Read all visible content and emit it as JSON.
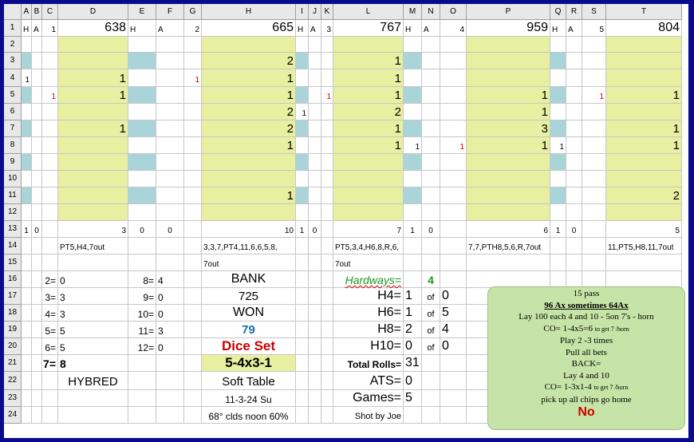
{
  "columns": [
    "A",
    "B",
    "C",
    "D",
    "E",
    "F",
    "G",
    "H",
    "I",
    "J",
    "K",
    "L",
    "M",
    "N",
    "O",
    "P",
    "Q",
    "R",
    "S",
    "T"
  ],
  "rows": [
    "1",
    "2",
    "3",
    "4",
    "5",
    "6",
    "7",
    "8",
    "9",
    "10",
    "11",
    "12",
    "13",
    "14",
    "15",
    "16",
    "17",
    "18",
    "19",
    "20",
    "21",
    "22",
    "23",
    "24"
  ],
  "row1": {
    "A": "H",
    "B": "A",
    "C": "1",
    "D": "638",
    "E": "H",
    "F": "A",
    "G": "2",
    "H": "665",
    "I": "H",
    "J": "A",
    "K": "3",
    "L": "767",
    "M": "H",
    "N": "A",
    "O": "4",
    "P": "959",
    "Q": "H",
    "R": "A",
    "S": "5",
    "T": "804"
  },
  "grid": {
    "r3": {
      "H": "2",
      "L": "1"
    },
    "r4": {
      "A": "1",
      "D": "1",
      "G": "1",
      "H": "1",
      "L": "1"
    },
    "r5": {
      "C": "1",
      "D": "1",
      "H": "1",
      "K": "1",
      "L": "1",
      "P": "1",
      "S": "1",
      "T": "1"
    },
    "r6": {
      "H": "2",
      "I": "1",
      "L": "2",
      "P": "1"
    },
    "r7": {
      "D": "1",
      "H": "2",
      "L": "1",
      "P": "3",
      "T": "1"
    },
    "r8": {
      "H": "1",
      "L": "1",
      "M": "1",
      "O": "1",
      "P": "1",
      "Q": "1",
      "T": "1"
    },
    "r11": {
      "H": "1",
      "T": "2"
    },
    "r13": {
      "A": "1",
      "B": "0",
      "D": "3",
      "E": "0",
      "F": "0",
      "H": "10",
      "I": "1",
      "J": "0",
      "L": "7",
      "M": "1",
      "N": "0",
      "P": "6",
      "Q": "1",
      "R": "0",
      "T": "5"
    }
  },
  "row14": {
    "D": "PT5,H4,7out",
    "H": "3,3,7,PT4,11,6,6,5,8,",
    "L": "PT5,3,4,H6,8,R,6,",
    "P": "7,7,PTH8,5,6,R,7out",
    "T": "11,PT5,H8,11,7out"
  },
  "row15": {
    "H": "7out",
    "L": "7out"
  },
  "summary": {
    "c16": "2=",
    "d16": "0",
    "e16": "8=",
    "e16v": "4",
    "h16": "BANK",
    "c17": "3=",
    "d17": "3",
    "e17": "9=",
    "e17v": "0",
    "h17": "725",
    "c18": "4=",
    "d18": "3",
    "e18": "10=",
    "e18v": "0",
    "h18": "WON",
    "c19": "5=",
    "d19": "5",
    "e19": "11=",
    "e19v": "3",
    "h19": "79",
    "c20": "6=",
    "d20": "5",
    "e20": "12=",
    "e20v": "0",
    "h20": "Dice Set",
    "c21": "7=",
    "d21": "8",
    "h21": "5-4x3-1",
    "d22": "HYBRED",
    "h22": "Soft Table",
    "h23": "11-3-24 Su",
    "h24": "68° clds noon 60%"
  },
  "hardways": {
    "label": "Hardways=",
    "value": "4",
    "h4": "H4=",
    "h4a": "1",
    "h4of": "of",
    "h4b": "0",
    "h6": "H6=",
    "h6a": "1",
    "h6of": "of",
    "h6b": "5",
    "h8": "H8=",
    "h8a": "2",
    "h8of": "of",
    "h8b": "4",
    "h10": "H10=",
    "h10a": "0",
    "h10of": "of",
    "h10b": "0",
    "total_label": "Total Rolls=",
    "total": "31",
    "ats_label": "ATS=",
    "ats": "0",
    "games_label": "Games=",
    "games": "5",
    "shot": "Shot by Joe"
  },
  "notes": {
    "l1": "15 pass",
    "l2": "96 Ax sometimes 64Ax",
    "l3": "Lay 100 each 4 and 10 - 5on 7's - horn",
    "l4a": "CO= 1-4x5=6",
    "l4b": "to get 7 /horn",
    "l5": "Play 2 -3 times",
    "l6": "Pull all bets",
    "l7": "BACK=",
    "l8": "Lay 4 and 10",
    "l9a": "CO= 1-3x1-4",
    "l9b": "to get 7 /horn",
    "l10": "pick up all chips go home",
    "l11": "No"
  },
  "colors": {
    "yellow_fill": "#e6f0a0",
    "blue_fill": "#a9d4d9",
    "notes_fill": "#c6e4a7",
    "frame": "#0a0a8c"
  }
}
